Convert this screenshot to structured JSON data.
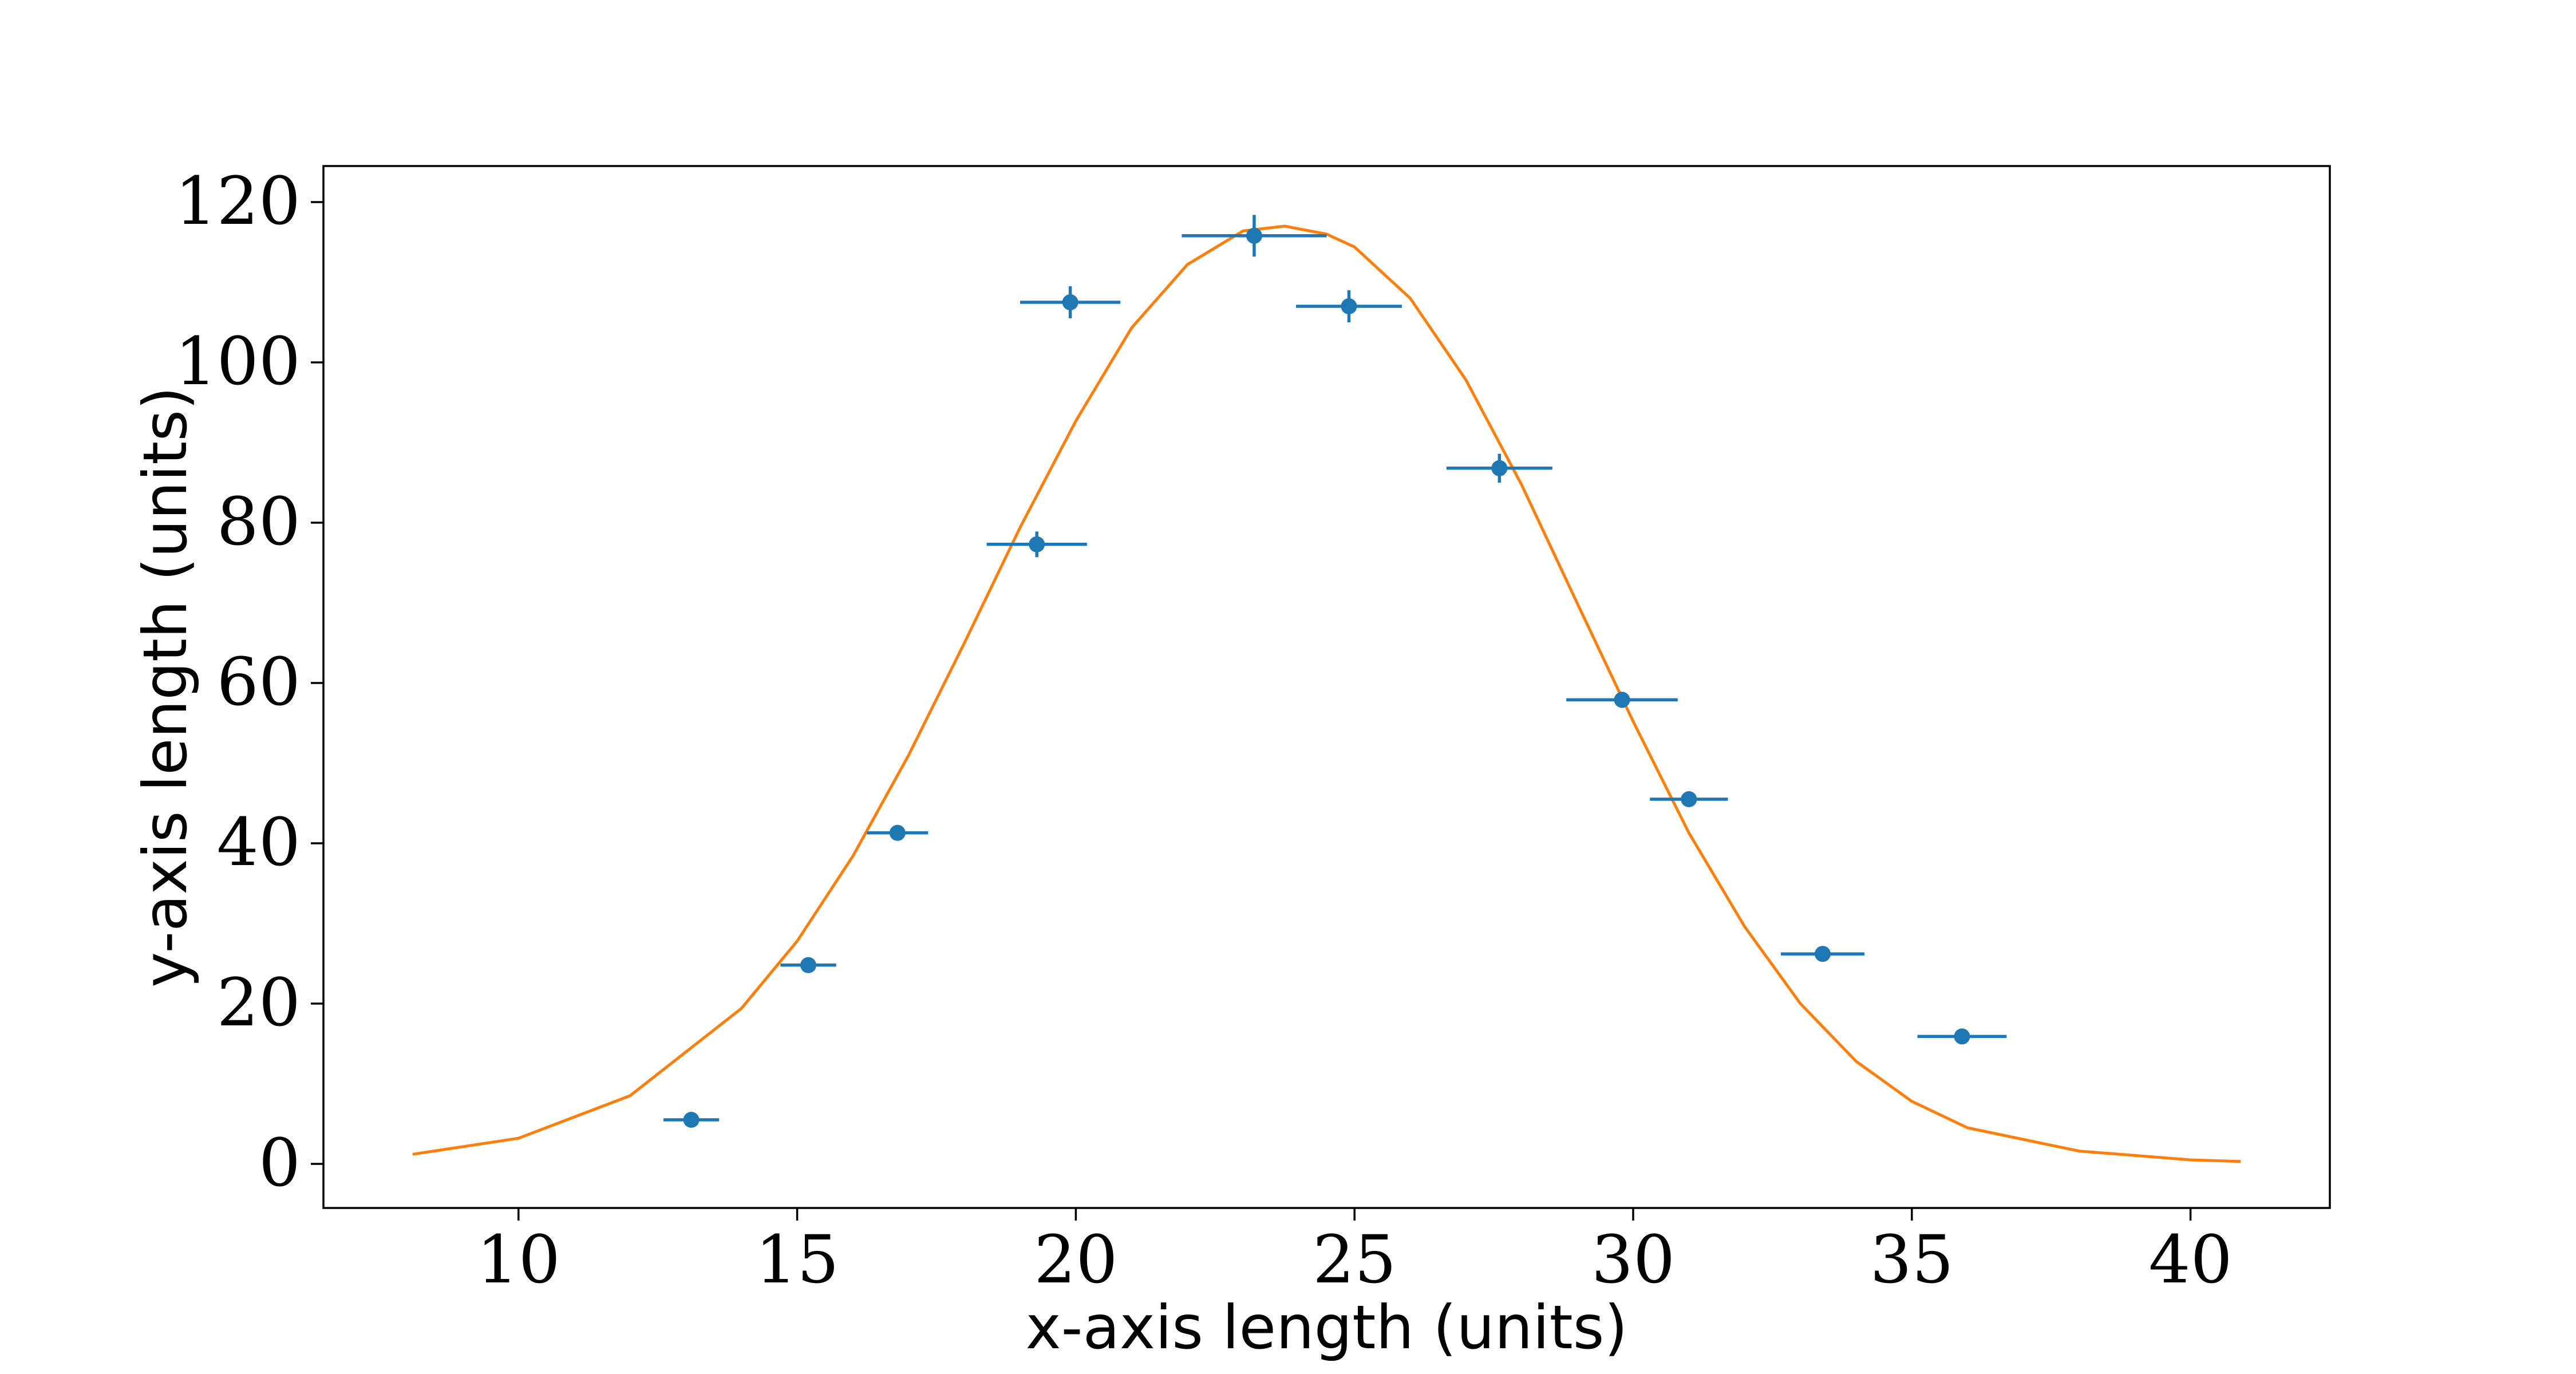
{
  "chart_data": {
    "type": "scatter",
    "title": "",
    "xlabel": "x-axis length (units)",
    "ylabel": "y-axis length (units)",
    "xlim": [
      6.5,
      42.5
    ],
    "ylim": [
      -5.5,
      124.5
    ],
    "xticks": [
      10,
      15,
      20,
      25,
      30,
      35,
      40
    ],
    "yticks": [
      0,
      20,
      40,
      60,
      80,
      100,
      120
    ],
    "x_tick_labels": [
      "10",
      "15",
      "20",
      "25",
      "30",
      "35",
      "40"
    ],
    "y_tick_labels": [
      "0",
      "20",
      "40",
      "60",
      "80",
      "100",
      "120"
    ],
    "grid": false,
    "legend": "none",
    "series": [
      {
        "kind": "errorbar",
        "color": "#1f77b4",
        "points": [
          {
            "x": 13.1,
            "y": 5.5,
            "xerr": 0.5,
            "yerr": 0.5
          },
          {
            "x": 15.2,
            "y": 24.8,
            "xerr": 0.5,
            "yerr": 0.6
          },
          {
            "x": 16.8,
            "y": 41.3,
            "xerr": 0.55,
            "yerr": 0.7
          },
          {
            "x": 19.3,
            "y": 77.3,
            "xerr": 0.9,
            "yerr": 1.6
          },
          {
            "x": 19.9,
            "y": 107.5,
            "xerr": 0.9,
            "yerr": 2.0
          },
          {
            "x": 23.2,
            "y": 115.8,
            "xerr": 1.3,
            "yerr": 2.6
          },
          {
            "x": 24.9,
            "y": 107.0,
            "xerr": 0.95,
            "yerr": 2.0
          },
          {
            "x": 27.6,
            "y": 86.8,
            "xerr": 0.95,
            "yerr": 1.8
          },
          {
            "x": 29.8,
            "y": 57.9,
            "xerr": 1.0,
            "yerr": 1.0
          },
          {
            "x": 31.0,
            "y": 45.5,
            "xerr": 0.7,
            "yerr": 0.7
          },
          {
            "x": 33.4,
            "y": 26.2,
            "xerr": 0.75,
            "yerr": 0.5
          },
          {
            "x": 35.9,
            "y": 15.9,
            "xerr": 0.8,
            "yerr": 0.4
          }
        ]
      },
      {
        "kind": "line",
        "color": "#ff7f0e",
        "x": [
          8.1,
          10,
          12,
          14,
          15,
          16,
          17,
          18,
          19,
          20,
          21,
          22,
          23,
          23.75,
          24.5,
          25,
          26,
          27,
          28,
          29,
          30,
          31,
          32,
          33,
          34,
          35,
          36,
          38,
          40,
          40.9
        ],
        "y": [
          1.2,
          3.2,
          8.5,
          19.4,
          27.8,
          38.4,
          51.0,
          65.0,
          79.4,
          92.7,
          104.3,
          112.2,
          116.4,
          117.0,
          116.0,
          114.4,
          108.0,
          97.8,
          84.7,
          69.9,
          55.2,
          41.3,
          29.6,
          20.0,
          12.8,
          7.8,
          4.5,
          1.6,
          0.5,
          0.3
        ]
      }
    ]
  }
}
